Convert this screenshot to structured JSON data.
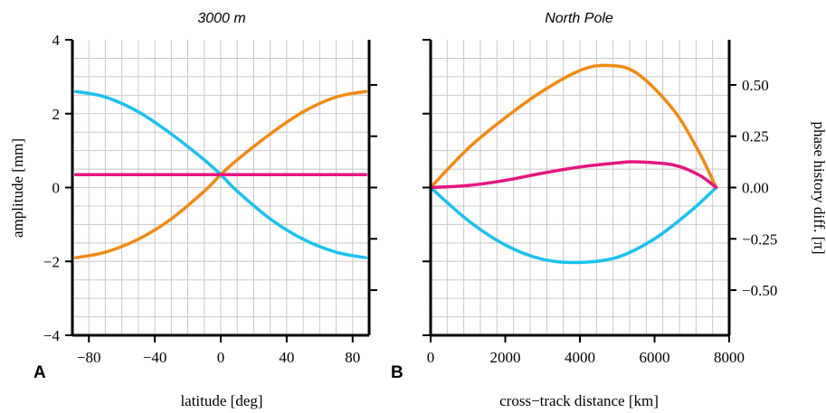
{
  "colors": {
    "orange": "#f28a11",
    "cyan": "#19c2f0",
    "magenta": "#e6157f"
  },
  "chart_data": [
    {
      "type": "line",
      "panel_label": "A",
      "title": "3000 m",
      "xlabel": "latitude [deg]",
      "ylabel": "amplitude [mm]",
      "xlim": [
        -90,
        90
      ],
      "ylim": [
        -4,
        4
      ],
      "xticks": [
        -80,
        -40,
        0,
        40,
        80
      ],
      "xtick_labels": [
        "−80",
        "−40",
        "0",
        "40",
        "80"
      ],
      "yticks": [
        -4,
        -2,
        0,
        2,
        4
      ],
      "ytick_labels": [
        "−4",
        "−2",
        "0",
        "2",
        "4"
      ],
      "grid": true,
      "series": [
        {
          "color": "orange",
          "x": [
            -88,
            -70,
            -50,
            -30,
            -10,
            0,
            10,
            30,
            50,
            70,
            88
          ],
          "y": [
            -1.9,
            -1.75,
            -1.4,
            -0.85,
            -0.1,
            0.35,
            0.75,
            1.45,
            2.05,
            2.45,
            2.6
          ]
        },
        {
          "color": "cyan",
          "x": [
            -88,
            -70,
            -50,
            -30,
            -10,
            0,
            10,
            30,
            50,
            70,
            88
          ],
          "y": [
            2.6,
            2.45,
            2.05,
            1.45,
            0.75,
            0.35,
            -0.1,
            -0.85,
            -1.4,
            -1.75,
            -1.9
          ]
        },
        {
          "color": "magenta",
          "x": [
            -88,
            88
          ],
          "y": [
            0.35,
            0.35
          ]
        }
      ]
    },
    {
      "type": "line",
      "panel_label": "B",
      "title": "North Pole",
      "xlabel": "cross−track distance [km]",
      "ylabel": "phase history diff. [π]",
      "xlim": [
        0,
        8000
      ],
      "ylim": [
        -0.72,
        0.72
      ],
      "xticks": [
        0,
        2000,
        4000,
        6000,
        8000
      ],
      "xtick_labels": [
        "0",
        "2000",
        "4000",
        "6000",
        "8000"
      ],
      "yticks": [
        -0.5,
        -0.25,
        0,
        0.25,
        0.5
      ],
      "ytick_labels": [
        "−0.50",
        "−0.25",
        "0.00",
        "0.25",
        "0.50"
      ],
      "grid": true,
      "series": [
        {
          "color": "orange",
          "x": [
            0,
            1000,
            2000,
            3000,
            4000,
            4700,
            5500,
            6500,
            7200,
            7650
          ],
          "y": [
            0.0,
            0.19,
            0.34,
            0.47,
            0.57,
            0.595,
            0.56,
            0.38,
            0.17,
            0.0
          ]
        },
        {
          "color": "cyan",
          "x": [
            0,
            1000,
            2000,
            3000,
            4000,
            5000,
            6000,
            7000,
            7650
          ],
          "y": [
            0.0,
            -0.16,
            -0.28,
            -0.35,
            -0.365,
            -0.34,
            -0.25,
            -0.11,
            0.0
          ]
        },
        {
          "color": "magenta",
          "x": [
            0,
            1000,
            2000,
            3000,
            4000,
            5000,
            5500,
            6500,
            7200,
            7650
          ],
          "y": [
            0.0,
            0.01,
            0.035,
            0.07,
            0.1,
            0.12,
            0.125,
            0.11,
            0.06,
            0.0
          ]
        }
      ]
    }
  ]
}
